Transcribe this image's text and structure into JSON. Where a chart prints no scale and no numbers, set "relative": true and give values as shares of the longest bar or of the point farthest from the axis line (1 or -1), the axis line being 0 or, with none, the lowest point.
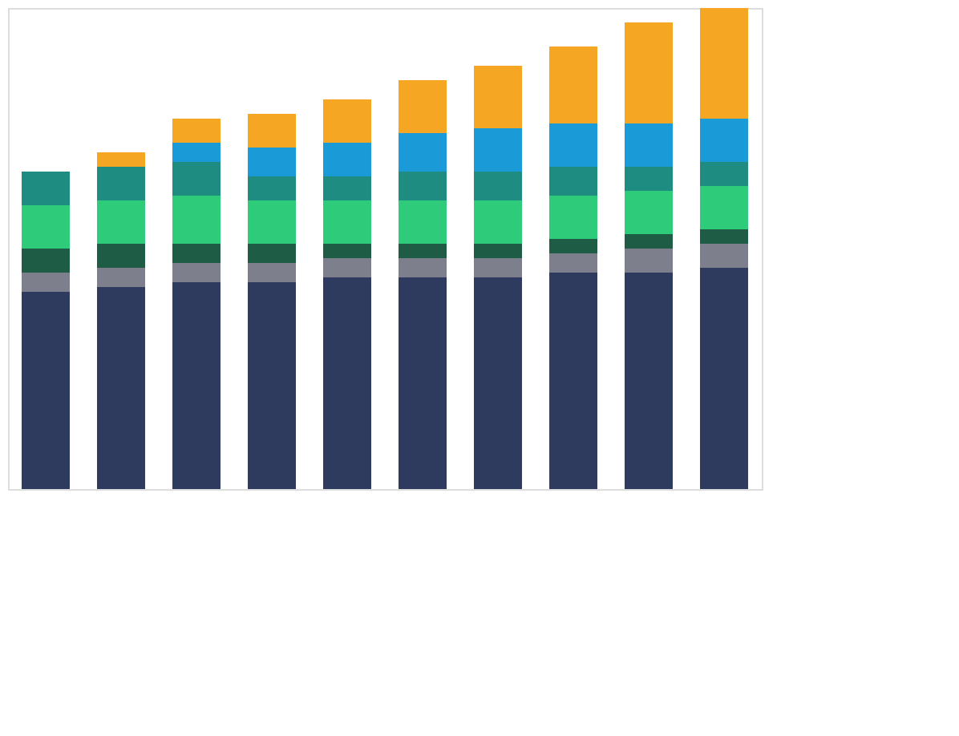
{
  "chart_data": {
    "type": "bar",
    "stacked": true,
    "relative": true,
    "legend": false,
    "grid": false,
    "categories": [
      null,
      null,
      null,
      null,
      null,
      null,
      null,
      null,
      null,
      null
    ],
    "series": [
      {
        "color": "#2f3b5e",
        "values": [
          0.41,
          0.42,
          0.43,
          0.43,
          0.44,
          0.44,
          0.44,
          0.45,
          0.45,
          0.46
        ]
      },
      {
        "color": "#7d7f8c",
        "values": [
          0.04,
          0.04,
          0.04,
          0.04,
          0.04,
          0.04,
          0.04,
          0.04,
          0.05,
          0.05
        ]
      },
      {
        "color": "#1f5c45",
        "values": [
          0.05,
          0.05,
          0.04,
          0.04,
          0.03,
          0.03,
          0.03,
          0.03,
          0.03,
          0.03
        ]
      },
      {
        "color": "#2ecc7a",
        "values": [
          0.09,
          0.09,
          0.1,
          0.09,
          0.09,
          0.09,
          0.09,
          0.09,
          0.09,
          0.09
        ]
      },
      {
        "color": "#1e8c80",
        "values": [
          0.07,
          0.07,
          0.07,
          0.05,
          0.05,
          0.06,
          0.06,
          0.06,
          0.05,
          0.05
        ]
      },
      {
        "color": "#1a9ad6",
        "values": [
          0,
          0,
          0.04,
          0.06,
          0.07,
          0.08,
          0.09,
          0.09,
          0.09,
          0.09
        ]
      },
      {
        "color": "#f5a623",
        "values": [
          0,
          0.03,
          0.05,
          0.07,
          0.09,
          0.11,
          0.13,
          0.16,
          0.21,
          0.23
        ]
      }
    ]
  }
}
